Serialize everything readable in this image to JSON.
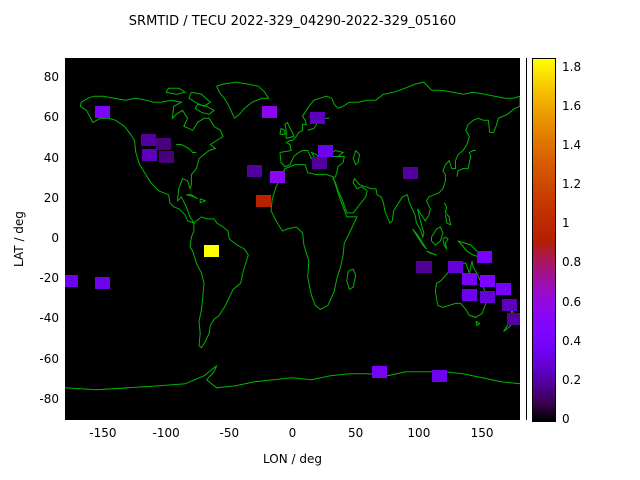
{
  "page": {
    "background": "#ffffff"
  },
  "chart_data": {
    "type": "heatmap",
    "title": "SRMTID / TECU 2022-329_04290-2022-329_05160",
    "xlabel": "LON / deg",
    "ylabel": "LAT / deg",
    "xlim": [
      -180,
      180
    ],
    "ylim": [
      -90,
      90
    ],
    "xticks": [
      -150,
      -100,
      -50,
      0,
      50,
      100,
      150
    ],
    "yticks": [
      -80,
      -60,
      -40,
      -20,
      0,
      20,
      40,
      60,
      80
    ],
    "grid": false,
    "plot_bg": "#000000",
    "coast_color": "#00b400",
    "legend_position": "right-colorbar",
    "colorbar": {
      "min": 0,
      "max": 1.85,
      "tick_labels": [
        "0",
        "0.2",
        "0.4",
        "0.6",
        "0.8",
        "1",
        "1.2",
        "1.4",
        "1.6",
        "1.8"
      ],
      "tick_values": [
        0,
        0.2,
        0.4,
        0.6,
        0.8,
        1,
        1.2,
        1.4,
        1.6,
        1.8
      ]
    },
    "cell_size_deg": {
      "lon": 12,
      "lat": 6
    },
    "cells": [
      {
        "lon": -150,
        "lat": 63,
        "v": 0.45
      },
      {
        "lon": -18,
        "lat": 63,
        "v": 0.55
      },
      {
        "lon": 20,
        "lat": 60,
        "v": 0.25
      },
      {
        "lon": -114,
        "lat": 49,
        "v": 0.2
      },
      {
        "lon": -102,
        "lat": 47,
        "v": 0.15
      },
      {
        "lon": -113,
        "lat": 42,
        "v": 0.25
      },
      {
        "lon": -100,
        "lat": 41,
        "v": 0.15
      },
      {
        "lon": 26,
        "lat": 44,
        "v": 0.35
      },
      {
        "lon": 21,
        "lat": 38,
        "v": 0.2
      },
      {
        "lon": -30,
        "lat": 34,
        "v": 0.2
      },
      {
        "lon": -12,
        "lat": 31,
        "v": 0.55
      },
      {
        "lon": 93,
        "lat": 33,
        "v": 0.2
      },
      {
        "lon": -23,
        "lat": 19,
        "v": 0.95
      },
      {
        "lon": -64,
        "lat": -6,
        "v": 1.85
      },
      {
        "lon": 152,
        "lat": -9,
        "v": 0.4
      },
      {
        "lon": 104,
        "lat": -14,
        "v": 0.18
      },
      {
        "lon": -176,
        "lat": -21,
        "v": 0.35
      },
      {
        "lon": -150,
        "lat": -22,
        "v": 0.35
      },
      {
        "lon": 129,
        "lat": -14,
        "v": 0.3
      },
      {
        "lon": 140,
        "lat": -20,
        "v": 0.4
      },
      {
        "lon": 154,
        "lat": -21,
        "v": 0.45
      },
      {
        "lon": 140,
        "lat": -28,
        "v": 0.35
      },
      {
        "lon": 154,
        "lat": -29,
        "v": 0.3
      },
      {
        "lon": 167,
        "lat": -25,
        "v": 0.4
      },
      {
        "lon": 172,
        "lat": -33,
        "v": 0.25
      },
      {
        "lon": 176,
        "lat": -40,
        "v": 0.2
      },
      {
        "lon": 69,
        "lat": -66,
        "v": 0.4
      },
      {
        "lon": 116,
        "lat": -68,
        "v": 0.35
      }
    ]
  }
}
